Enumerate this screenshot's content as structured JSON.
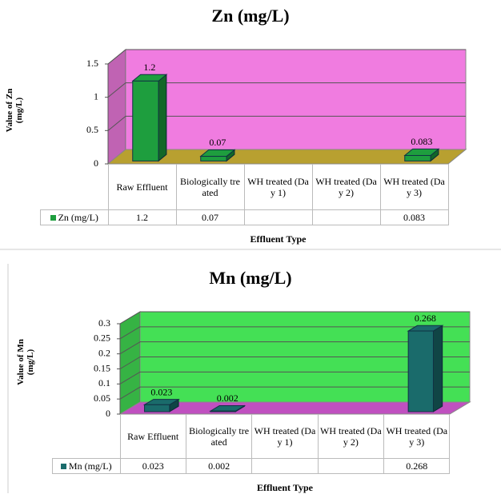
{
  "chart_data": [
    {
      "type": "bar3d",
      "title": "Zn (mg/L)",
      "y_label": "Value of Zn (mg/L)",
      "x_label": "Effluent Type",
      "categories": [
        "Raw Effluent",
        "Biologically treated",
        "WH treated (Day 1)",
        "WH treated (Day 2)",
        "WH treated (Day 3)"
      ],
      "series": [
        {
          "name": "Zn (mg/L)",
          "color": "#1e9e3e",
          "values": [
            1.2,
            0.07,
            null,
            null,
            0.083
          ]
        }
      ],
      "ylim": [
        0,
        1.5
      ],
      "yticks": [
        0,
        0.5,
        1,
        1.5
      ],
      "grid": true,
      "wall_color": "#f07ce0",
      "floor_color": "#b8a030"
    },
    {
      "type": "bar3d",
      "title": "Mn (mg/L)",
      "y_label": "Value of Mn (mg/L)",
      "x_label": "Effluent Type",
      "categories": [
        "Raw Effluent",
        "Biologically treated",
        "WH treated (Day 1)",
        "WH treated (Day 2)",
        "WH treated (Day 3)"
      ],
      "series": [
        {
          "name": "Mn (mg/L)",
          "color": "#1a6b6b",
          "values": [
            0.023,
            0.002,
            null,
            null,
            0.268
          ]
        }
      ],
      "ylim": [
        0,
        0.3
      ],
      "yticks": [
        0,
        0.05,
        0.1,
        0.15,
        0.2,
        0.25,
        0.3
      ],
      "grid": true,
      "wall_color": "#44e055",
      "floor_color": "#c050c0"
    }
  ]
}
